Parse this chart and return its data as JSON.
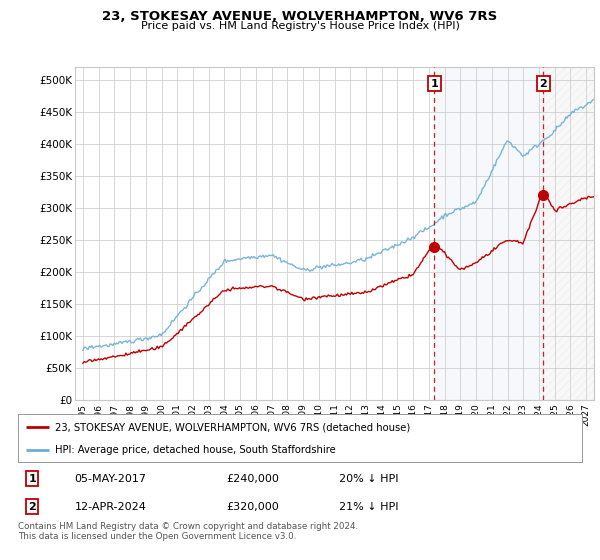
{
  "title": "23, STOKESAY AVENUE, WOLVERHAMPTON, WV6 7RS",
  "subtitle": "Price paid vs. HM Land Registry's House Price Index (HPI)",
  "legend_line1": "23, STOKESAY AVENUE, WOLVERHAMPTON, WV6 7RS (detached house)",
  "legend_line2": "HPI: Average price, detached house, South Staffordshire",
  "transaction1_date": "05-MAY-2017",
  "transaction1_price": "£240,000",
  "transaction1_hpi": "20% ↓ HPI",
  "transaction1_year": 2017.35,
  "transaction1_value": 240000,
  "transaction2_date": "12-APR-2024",
  "transaction2_price": "£320,000",
  "transaction2_hpi": "21% ↓ HPI",
  "transaction2_year": 2024.28,
  "transaction2_value": 320000,
  "footer": "Contains HM Land Registry data © Crown copyright and database right 2024.\nThis data is licensed under the Open Government Licence v3.0.",
  "xmin": 1994.5,
  "xmax": 2027.5,
  "ymin": 0,
  "ymax": 520000,
  "yticks": [
    0,
    50000,
    100000,
    150000,
    200000,
    250000,
    300000,
    350000,
    400000,
    450000,
    500000
  ],
  "hpi_color": "#6aaed6",
  "price_color": "#c00000",
  "vline_color": "#c00000",
  "shade_color": "#dce6f1",
  "background_color": "#ffffff",
  "grid_color": "#c8c8c8"
}
